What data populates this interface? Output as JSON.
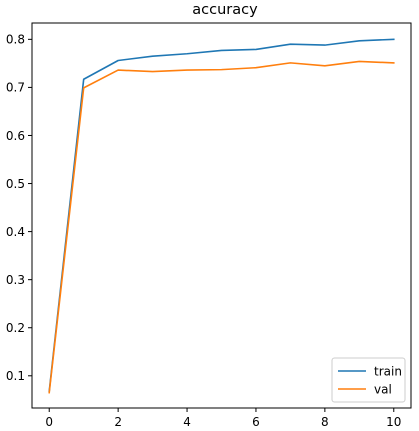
{
  "chart_data": {
    "type": "line",
    "title": "accuracy",
    "xlabel": "",
    "ylabel": "",
    "x": [
      0,
      1,
      2,
      3,
      4,
      5,
      6,
      7,
      8,
      9,
      10
    ],
    "xlim": [
      -0.5,
      10.5
    ],
    "ylim": [
      0.033,
      0.834
    ],
    "xticks": [
      "0",
      "2",
      "4",
      "6",
      "8",
      "10"
    ],
    "yticks": [
      "0.1",
      "0.2",
      "0.3",
      "0.4",
      "0.5",
      "0.6",
      "0.7",
      "0.8"
    ],
    "grid": false,
    "legend_position": "lower-right",
    "series": [
      {
        "name": "train",
        "color": "#1f77b4",
        "values": [
          0.068,
          0.717,
          0.756,
          0.765,
          0.77,
          0.777,
          0.779,
          0.79,
          0.788,
          0.797,
          0.8
        ]
      },
      {
        "name": "val",
        "color": "#ff7f0e",
        "values": [
          0.065,
          0.699,
          0.736,
          0.733,
          0.736,
          0.737,
          0.741,
          0.751,
          0.745,
          0.754,
          0.751
        ]
      }
    ]
  }
}
